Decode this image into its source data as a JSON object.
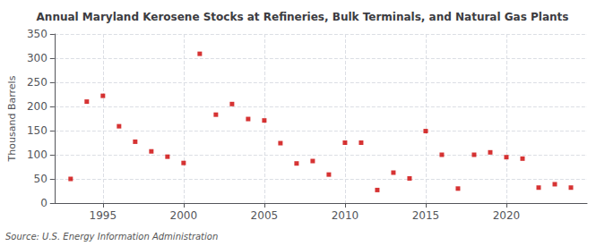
{
  "chart_data": {
    "type": "scatter",
    "title": "Annual Maryland Kerosene Stocks at Refineries, Bulk Terminals, and Natural Gas Plants",
    "ylabel": "Thousand Barrels",
    "annotations": [
      "Source: U.S. Energy Information Administration"
    ],
    "x": [
      1993,
      1994,
      1995,
      1996,
      1997,
      1998,
      1999,
      2000,
      2001,
      2002,
      2003,
      2004,
      2005,
      2006,
      2007,
      2008,
      2009,
      2010,
      2011,
      2012,
      2013,
      2014,
      2015,
      2016,
      2017,
      2018,
      2019,
      2020,
      2021,
      2022,
      2023,
      2024
    ],
    "values": [
      50,
      210,
      222,
      159,
      127,
      107,
      96,
      83,
      309,
      183,
      205,
      174,
      171,
      124,
      82,
      87,
      59,
      125,
      125,
      27,
      63,
      51,
      149,
      100,
      30,
      100,
      105,
      95,
      92,
      32,
      39,
      32
    ],
    "color": "#cc0000",
    "marker": "square",
    "xlim": [
      1992,
      2025
    ],
    "xticks": [
      1995,
      2000,
      2005,
      2010,
      2015,
      2020
    ],
    "ylim": [
      0,
      350
    ],
    "yticks": [
      0,
      50,
      100,
      150,
      200,
      250,
      300,
      350
    ],
    "grid": true
  }
}
